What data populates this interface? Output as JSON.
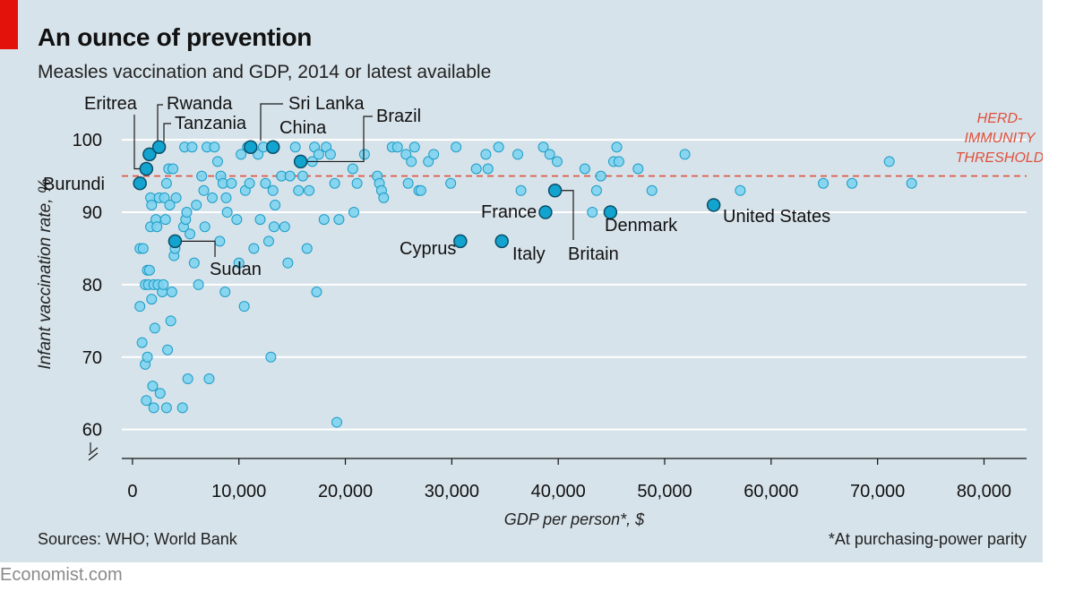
{
  "header": {
    "title": "An ounce of prevention",
    "subtitle": "Measles vaccination and GDP, 2014 or latest available"
  },
  "footer": {
    "sources": "Sources: WHO; World Bank",
    "footnote": "*At purchasing-power parity",
    "brand": "Economist.com"
  },
  "colors": {
    "background": "#d7e3ea",
    "point_fill": "#7fd3ef",
    "point_stroke": "#1b9cc6",
    "highlight_fill": "#12a3cf",
    "highlight_stroke": "#0b4e68",
    "threshold": "#e0503c",
    "accent": "#e3120b"
  },
  "chart_data": {
    "type": "scatter",
    "title": "An ounce of prevention",
    "subtitle": "Measles vaccination and GDP, 2014 or latest available",
    "xlabel": "GDP per person*, $",
    "ylabel": "Infant vaccination rate, %",
    "xlim": [
      -1000,
      84000
    ],
    "ylim": [
      56,
      102
    ],
    "xticks": [
      0,
      10000,
      20000,
      30000,
      40000,
      50000,
      60000,
      70000,
      80000
    ],
    "xtick_labels": [
      "0",
      "10,000",
      "20,000",
      "30,000",
      "40,000",
      "50,000",
      "60,000",
      "70,000",
      "80,000"
    ],
    "yticks": [
      60,
      70,
      80,
      90,
      100
    ],
    "ytick_labels": [
      "60",
      "70",
      "80",
      "90",
      "100"
    ],
    "y_axis_break": true,
    "grid": true,
    "threshold": {
      "value": 95,
      "label_lines": [
        "HERD-",
        "IMMUNITY",
        "THRESHOLD"
      ]
    },
    "highlighted": [
      {
        "name": "Eritrea",
        "x": 1300,
        "y": 96
      },
      {
        "name": "Rwanda",
        "x": 1600,
        "y": 98
      },
      {
        "name": "Tanzania",
        "x": 2500,
        "y": 99
      },
      {
        "name": "Burundi",
        "x": 700,
        "y": 94
      },
      {
        "name": "Sudan",
        "x": 4000,
        "y": 86
      },
      {
        "name": "Sri Lanka",
        "x": 11100,
        "y": 99
      },
      {
        "name": "China",
        "x": 13200,
        "y": 99
      },
      {
        "name": "Brazil",
        "x": 15800,
        "y": 97
      },
      {
        "name": "Cyprus",
        "x": 30800,
        "y": 86
      },
      {
        "name": "Italy",
        "x": 34700,
        "y": 86
      },
      {
        "name": "France",
        "x": 38800,
        "y": 90
      },
      {
        "name": "Britain",
        "x": 39700,
        "y": 93
      },
      {
        "name": "Denmark",
        "x": 44900,
        "y": 90
      },
      {
        "name": "United States",
        "x": 54600,
        "y": 91
      }
    ],
    "points": [
      [
        700,
        77
      ],
      [
        700,
        85
      ],
      [
        900,
        72
      ],
      [
        1000,
        85
      ],
      [
        1200,
        69
      ],
      [
        1200,
        80
      ],
      [
        1300,
        64
      ],
      [
        1400,
        82
      ],
      [
        1400,
        70
      ],
      [
        1500,
        80
      ],
      [
        1600,
        82
      ],
      [
        1700,
        88
      ],
      [
        1700,
        92
      ],
      [
        1800,
        91
      ],
      [
        1800,
        78
      ],
      [
        1900,
        66
      ],
      [
        2000,
        63
      ],
      [
        2000,
        80
      ],
      [
        2100,
        74
      ],
      [
        2200,
        89
      ],
      [
        2300,
        88
      ],
      [
        2400,
        80
      ],
      [
        2500,
        92
      ],
      [
        2600,
        65
      ],
      [
        2800,
        79
      ],
      [
        2900,
        80
      ],
      [
        3000,
        92
      ],
      [
        3100,
        89
      ],
      [
        3200,
        94
      ],
      [
        3200,
        63
      ],
      [
        3300,
        71
      ],
      [
        3400,
        96
      ],
      [
        3500,
        91
      ],
      [
        3600,
        75
      ],
      [
        3700,
        79
      ],
      [
        3800,
        96
      ],
      [
        3900,
        84
      ],
      [
        4000,
        85
      ],
      [
        4100,
        92
      ],
      [
        4700,
        63
      ],
      [
        4800,
        88
      ],
      [
        4900,
        99
      ],
      [
        5000,
        89
      ],
      [
        5100,
        90
      ],
      [
        5200,
        67
      ],
      [
        5400,
        87
      ],
      [
        5600,
        99
      ],
      [
        5800,
        83
      ],
      [
        6000,
        91
      ],
      [
        6200,
        80
      ],
      [
        6500,
        95
      ],
      [
        6700,
        93
      ],
      [
        6800,
        88
      ],
      [
        7000,
        99
      ],
      [
        7200,
        67
      ],
      [
        7500,
        92
      ],
      [
        7700,
        99
      ],
      [
        8000,
        97
      ],
      [
        8200,
        86
      ],
      [
        8300,
        95
      ],
      [
        8500,
        94
      ],
      [
        8700,
        79
      ],
      [
        8800,
        92
      ],
      [
        8900,
        90
      ],
      [
        9300,
        94
      ],
      [
        9800,
        89
      ],
      [
        10000,
        83
      ],
      [
        10200,
        98
      ],
      [
        10500,
        77
      ],
      [
        10600,
        93
      ],
      [
        10800,
        99
      ],
      [
        11000,
        94
      ],
      [
        11400,
        85
      ],
      [
        11800,
        98
      ],
      [
        12000,
        89
      ],
      [
        12300,
        99
      ],
      [
        12500,
        94
      ],
      [
        12800,
        86
      ],
      [
        13000,
        70
      ],
      [
        13200,
        93
      ],
      [
        13300,
        88
      ],
      [
        13400,
        91
      ],
      [
        14000,
        95
      ],
      [
        14300,
        88
      ],
      [
        14600,
        83
      ],
      [
        14800,
        95
      ],
      [
        15300,
        99
      ],
      [
        15600,
        93
      ],
      [
        16000,
        95
      ],
      [
        16400,
        85
      ],
      [
        16600,
        93
      ],
      [
        16900,
        97
      ],
      [
        17100,
        99
      ],
      [
        17300,
        79
      ],
      [
        17500,
        98
      ],
      [
        18000,
        89
      ],
      [
        18200,
        99
      ],
      [
        18600,
        98
      ],
      [
        19000,
        94
      ],
      [
        19200,
        61
      ],
      [
        19400,
        89
      ],
      [
        20700,
        96
      ],
      [
        20800,
        90
      ],
      [
        21100,
        94
      ],
      [
        21800,
        98
      ],
      [
        23000,
        95
      ],
      [
        23200,
        94
      ],
      [
        23400,
        93
      ],
      [
        23600,
        92
      ],
      [
        24400,
        99
      ],
      [
        24900,
        99
      ],
      [
        25700,
        98
      ],
      [
        25900,
        94
      ],
      [
        26200,
        97
      ],
      [
        26500,
        99
      ],
      [
        26900,
        93
      ],
      [
        27100,
        93
      ],
      [
        27800,
        97
      ],
      [
        28300,
        98
      ],
      [
        29900,
        94
      ],
      [
        30400,
        99
      ],
      [
        32300,
        96
      ],
      [
        33200,
        98
      ],
      [
        33400,
        96
      ],
      [
        34400,
        99
      ],
      [
        36200,
        98
      ],
      [
        36500,
        93
      ],
      [
        38600,
        99
      ],
      [
        39200,
        98
      ],
      [
        39900,
        97
      ],
      [
        42500,
        96
      ],
      [
        43200,
        90
      ],
      [
        43600,
        93
      ],
      [
        44000,
        95
      ],
      [
        45200,
        97
      ],
      [
        45500,
        99
      ],
      [
        45700,
        97
      ],
      [
        47500,
        96
      ],
      [
        48800,
        93
      ],
      [
        51900,
        98
      ],
      [
        57100,
        93
      ],
      [
        64900,
        94
      ],
      [
        67600,
        94
      ],
      [
        71100,
        97
      ],
      [
        73200,
        94
      ]
    ]
  }
}
